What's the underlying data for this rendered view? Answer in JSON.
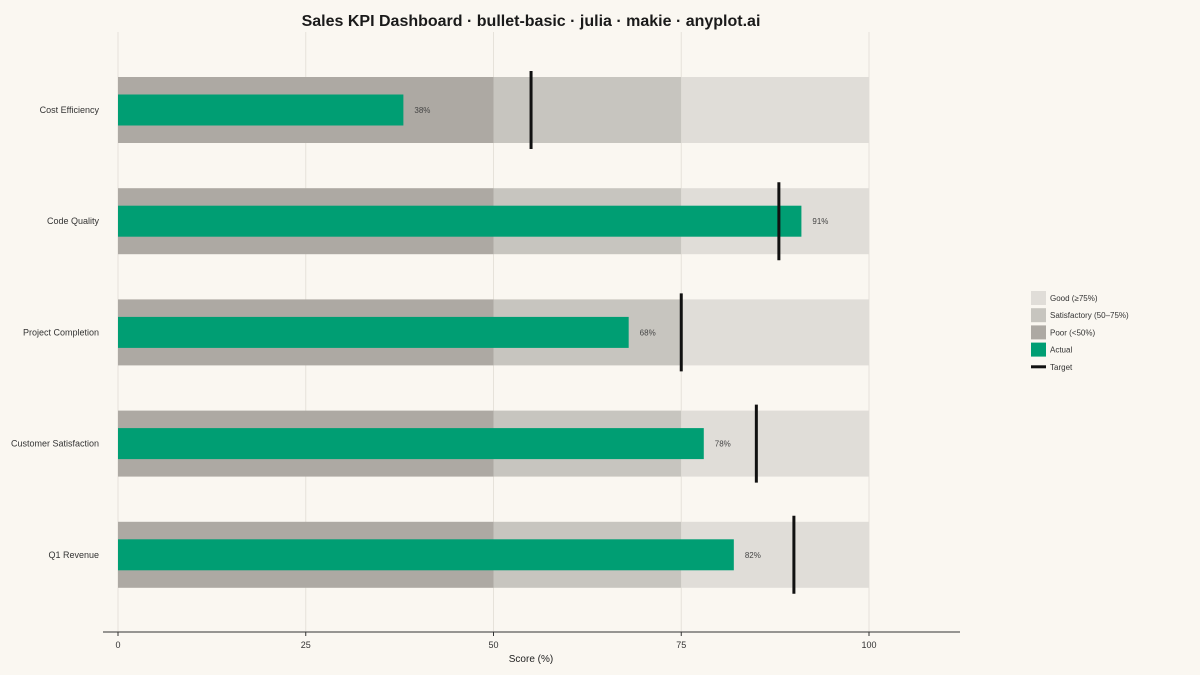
{
  "chart_data": {
    "type": "bullet",
    "title": "Sales KPI Dashboard · bullet-basic · julia · makie · anyplot.ai",
    "xlabel": "Score (%)",
    "ylabel": "",
    "xlim": [
      0,
      100
    ],
    "xticks": [
      0,
      25,
      50,
      75,
      100
    ],
    "grid": "vertical",
    "legend_position": "right",
    "ranges": [
      {
        "name": "Poor (<50%)",
        "from": 0,
        "to": 50,
        "color": "#ADA9A3"
      },
      {
        "name": "Satisfactory (50–75%)",
        "from": 50,
        "to": 75,
        "color": "#C7C5BF"
      },
      {
        "name": "Good (≥75%)",
        "from": 75,
        "to": 100,
        "color": "#E0DDD8"
      }
    ],
    "actual": {
      "name": "Actual",
      "color": "#009E73"
    },
    "target": {
      "name": "Target",
      "color": "#111111"
    },
    "items": [
      {
        "label": "Cost Efficiency",
        "actual": 38,
        "target": 55,
        "value_label": "38%",
        "highlight": false
      },
      {
        "label": "Code Quality",
        "actual": 91,
        "target": 88,
        "value_label": "91%",
        "highlight": true
      },
      {
        "label": "Project Completion",
        "actual": 68,
        "target": 75,
        "value_label": "68%",
        "highlight": false
      },
      {
        "label": "Customer Satisfaction",
        "actual": 78,
        "target": 85,
        "value_label": "78%",
        "highlight": false
      },
      {
        "label": "Q1 Revenue",
        "actual": 82,
        "target": 90,
        "value_label": "82%",
        "highlight": false
      }
    ],
    "legend": [
      {
        "label": "Good (≥75%)",
        "kind": "patch",
        "color": "#E0DDD8"
      },
      {
        "label": "Satisfactory (50–75%)",
        "kind": "patch",
        "color": "#C7C5BF"
      },
      {
        "label": "Poor (<50%)",
        "kind": "patch",
        "color": "#ADA9A3"
      },
      {
        "label": "Actual",
        "kind": "patch",
        "color": "#009E73"
      },
      {
        "label": "Target",
        "kind": "line",
        "color": "#111111"
      }
    ]
  }
}
